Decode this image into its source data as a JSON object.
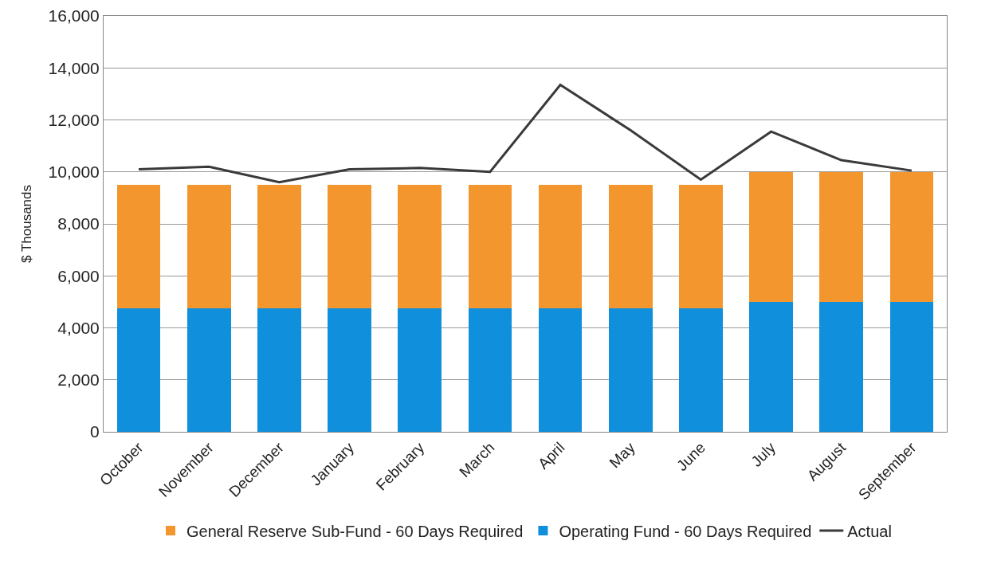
{
  "chart_data": {
    "type": "bar",
    "stacked": true,
    "ylabel": "$ Thousands",
    "categories": [
      "October",
      "November",
      "December",
      "January",
      "February",
      "March",
      "April",
      "May",
      "June",
      "July",
      "August",
      "September"
    ],
    "series": [
      {
        "name": "Operating Fund - 60 Days Required",
        "color": "#0f8fdc",
        "values": [
          4750,
          4750,
          4750,
          4750,
          4750,
          4750,
          4750,
          4750,
          4750,
          5000,
          5000,
          5000
        ]
      },
      {
        "name": "General Reserve Sub-Fund - 60 Days Required",
        "color": "#f4962e",
        "values": [
          4750,
          4750,
          4750,
          4750,
          4750,
          4750,
          4750,
          4750,
          4750,
          5000,
          5000,
          5000
        ]
      },
      {
        "name": "Actual",
        "type": "line",
        "color": "#3a3a3a",
        "values": [
          10100,
          10200,
          9600,
          10100,
          10150,
          10000,
          13350,
          11600,
          9700,
          11550,
          10450,
          10050
        ]
      }
    ],
    "ylim": [
      0,
      16000
    ],
    "yticks": [
      {
        "value": 0,
        "label": "0"
      },
      {
        "value": 2000,
        "label": "2,000"
      },
      {
        "value": 4000,
        "label": "4,000"
      },
      {
        "value": 6000,
        "label": "6,000"
      },
      {
        "value": 8000,
        "label": "8,000"
      },
      {
        "value": 10000,
        "label": "10,000"
      },
      {
        "value": 12000,
        "label": "12,000"
      },
      {
        "value": 14000,
        "label": "14,000"
      },
      {
        "value": 16000,
        "label": "16,000"
      }
    ],
    "grid": "y",
    "legend": "bottom",
    "marker": "none",
    "line_style": "solid"
  }
}
